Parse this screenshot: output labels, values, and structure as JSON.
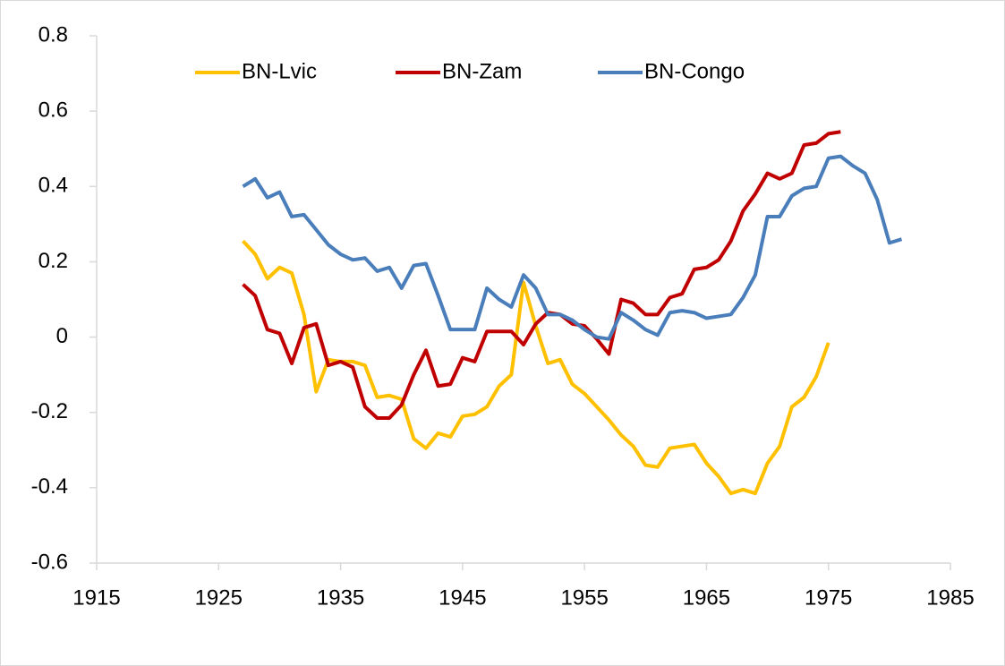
{
  "chart_data": {
    "type": "line",
    "x": [
      1927,
      1928,
      1929,
      1930,
      1931,
      1932,
      1933,
      1934,
      1935,
      1936,
      1937,
      1938,
      1939,
      1940,
      1941,
      1942,
      1943,
      1944,
      1945,
      1946,
      1947,
      1948,
      1949,
      1950,
      1951,
      1952,
      1953,
      1954,
      1955,
      1956,
      1957,
      1958,
      1959,
      1960,
      1961,
      1962,
      1963,
      1964,
      1965,
      1966,
      1967,
      1968,
      1969,
      1970,
      1971,
      1972,
      1973,
      1974,
      1975,
      1976,
      1977,
      1978,
      1979,
      1980,
      1981
    ],
    "series": [
      {
        "name": "BN-Lvic",
        "color": "#ffc000",
        "values": [
          0.255,
          0.22,
          0.155,
          0.185,
          0.17,
          0.06,
          -0.145,
          -0.06,
          -0.065,
          -0.065,
          -0.075,
          -0.16,
          -0.155,
          -0.165,
          -0.27,
          -0.295,
          -0.255,
          -0.265,
          -0.21,
          -0.205,
          -0.185,
          -0.13,
          -0.1,
          0.145,
          0.03,
          -0.07,
          -0.06,
          -0.125,
          -0.15,
          -0.185,
          -0.22,
          -0.26,
          -0.29,
          -0.34,
          -0.345,
          -0.295,
          -0.29,
          -0.285,
          -0.335,
          -0.37,
          -0.415,
          -0.405,
          -0.415,
          -0.335,
          -0.29,
          -0.185,
          -0.16,
          -0.105,
          -0.015,
          null,
          null,
          null,
          null,
          null,
          null
        ]
      },
      {
        "name": "BN-Zam",
        "color": "#c00000",
        "values": [
          0.14,
          0.11,
          0.02,
          0.01,
          -0.07,
          0.025,
          0.035,
          -0.075,
          -0.065,
          -0.08,
          -0.185,
          -0.215,
          -0.215,
          -0.18,
          -0.1,
          -0.035,
          -0.13,
          -0.125,
          -0.055,
          -0.065,
          0.015,
          0.015,
          0.015,
          -0.02,
          0.035,
          0.065,
          0.06,
          0.035,
          0.03,
          -0.005,
          -0.045,
          0.1,
          0.09,
          0.06,
          0.06,
          0.105,
          0.115,
          0.18,
          0.185,
          0.205,
          0.255,
          0.335,
          0.38,
          0.435,
          0.42,
          0.435,
          0.51,
          0.515,
          0.54,
          0.545,
          null,
          null,
          null,
          null,
          null
        ]
      },
      {
        "name": "BN-Congo",
        "color": "#4a7ebb",
        "values": [
          0.4,
          0.42,
          0.37,
          0.385,
          0.32,
          0.325,
          0.285,
          0.245,
          0.22,
          0.205,
          0.21,
          0.175,
          0.185,
          0.13,
          0.19,
          0.195,
          0.11,
          0.02,
          0.02,
          0.02,
          0.13,
          0.1,
          0.08,
          0.165,
          0.13,
          0.06,
          0.06,
          0.045,
          0.02,
          0.0,
          -0.005,
          0.065,
          0.045,
          0.02,
          0.005,
          0.065,
          0.07,
          0.065,
          0.05,
          0.055,
          0.06,
          0.105,
          0.165,
          0.32,
          0.32,
          0.375,
          0.395,
          0.4,
          0.475,
          0.48,
          0.455,
          0.435,
          0.365,
          0.25,
          0.26
        ]
      }
    ],
    "xlim": [
      1915,
      1985
    ],
    "xticks": [
      1915,
      1925,
      1935,
      1945,
      1955,
      1965,
      1975,
      1985
    ],
    "ylim": [
      -0.6,
      0.8
    ],
    "yticks": [
      -0.6,
      -0.4,
      -0.2,
      0,
      0.2,
      0.4,
      0.6,
      0.8
    ],
    "legend": "top"
  }
}
